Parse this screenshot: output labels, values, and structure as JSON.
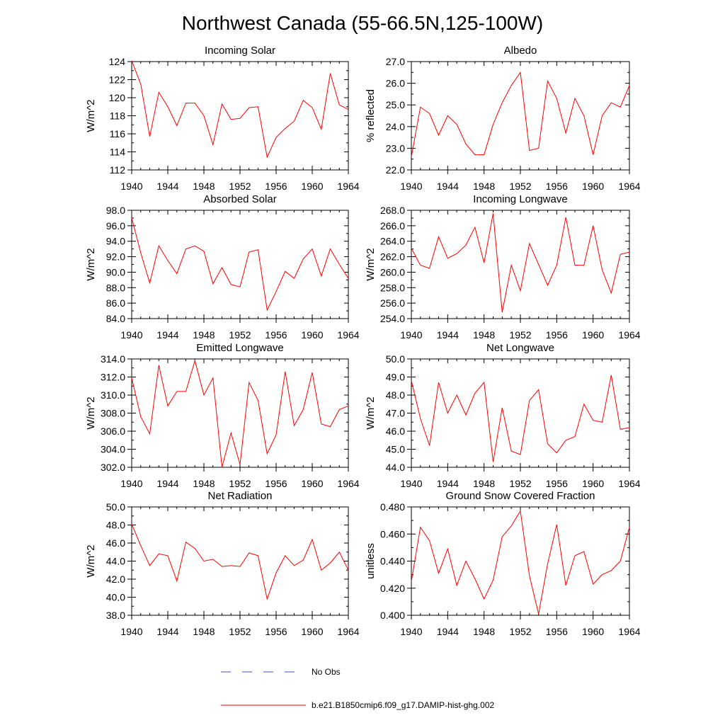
{
  "title": "Northwest Canada (55-66.5N,125-100W)",
  "legend": {
    "obs_label": "No Obs",
    "obs_color": "#3b4fb8",
    "model_label": "b.e21.B1850cmip6.f09_g17.DAMIP-hist-ghg.002",
    "model_color": "#ff0000"
  },
  "chart_data": [
    {
      "type": "line",
      "title": "Incoming Solar",
      "ylabel": "W/m^2",
      "xlim": [
        1940,
        1964
      ],
      "ylim": [
        112,
        124
      ],
      "yticks": [
        112,
        114,
        116,
        118,
        120,
        122,
        124
      ],
      "ytick_labels": [
        "112",
        "114",
        "116",
        "118",
        "120",
        "122",
        "124"
      ],
      "xticks": [
        1940,
        1944,
        1948,
        1952,
        1956,
        1960,
        1964
      ],
      "xtick_labels": [
        "1940",
        "1944",
        "1948",
        "1952",
        "1956",
        "1960",
        "1964"
      ],
      "x": [
        1940,
        1941,
        1942,
        1943,
        1944,
        1945,
        1946,
        1947,
        1948,
        1949,
        1950,
        1951,
        1952,
        1953,
        1954,
        1955,
        1956,
        1957,
        1958,
        1959,
        1960,
        1961,
        1962,
        1963,
        1964
      ],
      "series": [
        {
          "name": "b.e21.B1850cmip6.f09_g17.DAMIP-hist-ghg.002",
          "values": [
            124.1,
            121.5,
            115.7,
            120.6,
            119.0,
            116.9,
            119.4,
            119.4,
            118.0,
            114.8,
            119.3,
            117.6,
            117.7,
            118.9,
            119.0,
            113.4,
            115.6,
            116.6,
            117.4,
            119.7,
            118.9,
            116.5,
            122.7,
            119.2,
            118.7
          ]
        }
      ]
    },
    {
      "type": "line",
      "title": "Albedo",
      "ylabel": "% reflected",
      "xlim": [
        1940,
        1964
      ],
      "ylim": [
        22.0,
        27.0
      ],
      "yticks": [
        22.0,
        23.0,
        24.0,
        25.0,
        26.0,
        27.0
      ],
      "ytick_labels": [
        "22.0",
        "23.0",
        "24.0",
        "25.0",
        "26.0",
        "27.0"
      ],
      "xticks": [
        1940,
        1944,
        1948,
        1952,
        1956,
        1960,
        1964
      ],
      "xtick_labels": [
        "1940",
        "1944",
        "1948",
        "1952",
        "1956",
        "1960",
        "1964"
      ],
      "x": [
        1940,
        1941,
        1942,
        1943,
        1944,
        1945,
        1946,
        1947,
        1948,
        1949,
        1950,
        1951,
        1952,
        1953,
        1954,
        1955,
        1956,
        1957,
        1958,
        1959,
        1960,
        1961,
        1962,
        1963,
        1964
      ],
      "series": [
        {
          "name": "b.e21.B1850cmip6.f09_g17.DAMIP-hist-ghg.002",
          "values": [
            22.6,
            24.9,
            24.6,
            23.6,
            24.5,
            24.1,
            23.2,
            22.7,
            22.7,
            24.1,
            25.1,
            25.9,
            26.5,
            22.9,
            23.0,
            26.1,
            25.3,
            23.7,
            25.3,
            24.5,
            22.7,
            24.5,
            25.1,
            24.9,
            25.9
          ]
        }
      ]
    },
    {
      "type": "line",
      "title": "Absorbed Solar",
      "ylabel": "W/m^2",
      "xlim": [
        1940,
        1964
      ],
      "ylim": [
        84.0,
        98.0
      ],
      "yticks": [
        84.0,
        86.0,
        88.0,
        90.0,
        92.0,
        94.0,
        96.0,
        98.0
      ],
      "ytick_labels": [
        "84.0",
        "86.0",
        "88.0",
        "90.0",
        "92.0",
        "94.0",
        "96.0",
        "98.0"
      ],
      "xticks": [
        1940,
        1944,
        1948,
        1952,
        1956,
        1960,
        1964
      ],
      "xtick_labels": [
        "1940",
        "1944",
        "1948",
        "1952",
        "1956",
        "1960",
        "1964"
      ],
      "x": [
        1940,
        1941,
        1942,
        1943,
        1944,
        1945,
        1946,
        1947,
        1948,
        1949,
        1950,
        1951,
        1952,
        1953,
        1954,
        1955,
        1956,
        1957,
        1958,
        1959,
        1960,
        1961,
        1962,
        1963,
        1964
      ],
      "series": [
        {
          "name": "b.e21.B1850cmip6.f09_g17.DAMIP-hist-ghg.002",
          "values": [
            97.0,
            92.5,
            88.6,
            93.4,
            91.5,
            89.8,
            93.0,
            93.4,
            92.7,
            88.5,
            90.6,
            88.4,
            88.1,
            92.6,
            92.9,
            85.1,
            87.5,
            90.1,
            89.2,
            91.7,
            93.0,
            89.5,
            93.0,
            91.0,
            89.2
          ]
        }
      ]
    },
    {
      "type": "line",
      "title": "Incoming Longwave",
      "ylabel": "W/m^2",
      "xlim": [
        1940,
        1964
      ],
      "ylim": [
        254.0,
        268.0
      ],
      "yticks": [
        254.0,
        256.0,
        258.0,
        260.0,
        262.0,
        264.0,
        266.0,
        268.0
      ],
      "ytick_labels": [
        "254.0",
        "256.0",
        "258.0",
        "260.0",
        "262.0",
        "264.0",
        "266.0",
        "268.0"
      ],
      "xticks": [
        1940,
        1944,
        1948,
        1952,
        1956,
        1960,
        1964
      ],
      "xtick_labels": [
        "1940",
        "1944",
        "1948",
        "1952",
        "1956",
        "1960",
        "1964"
      ],
      "x": [
        1940,
        1941,
        1942,
        1943,
        1944,
        1945,
        1946,
        1947,
        1948,
        1949,
        1950,
        1951,
        1952,
        1953,
        1954,
        1955,
        1956,
        1957,
        1958,
        1959,
        1960,
        1961,
        1962,
        1963,
        1964
      ],
      "series": [
        {
          "name": "b.e21.B1850cmip6.f09_g17.DAMIP-hist-ghg.002",
          "values": [
            263.1,
            260.9,
            260.5,
            264.6,
            261.8,
            262.4,
            263.5,
            265.8,
            261.2,
            267.6,
            254.8,
            260.9,
            257.6,
            263.7,
            261.0,
            258.3,
            260.9,
            267.1,
            260.9,
            260.9,
            266.0,
            260.3,
            257.3,
            262.3,
            262.6
          ]
        }
      ]
    },
    {
      "type": "line",
      "title": "Emitted Longwave",
      "ylabel": "W/m^2",
      "xlim": [
        1940,
        1964
      ],
      "ylim": [
        302.0,
        314.0
      ],
      "yticks": [
        302.0,
        304.0,
        306.0,
        308.0,
        310.0,
        312.0,
        314.0
      ],
      "ytick_labels": [
        "302.0",
        "304.0",
        "306.0",
        "308.0",
        "310.0",
        "312.0",
        "314.0"
      ],
      "xticks": [
        1940,
        1944,
        1948,
        1952,
        1956,
        1960,
        1964
      ],
      "xtick_labels": [
        "1940",
        "1944",
        "1948",
        "1952",
        "1956",
        "1960",
        "1964"
      ],
      "x": [
        1940,
        1941,
        1942,
        1943,
        1944,
        1945,
        1946,
        1947,
        1948,
        1949,
        1950,
        1951,
        1952,
        1953,
        1954,
        1955,
        1956,
        1957,
        1958,
        1959,
        1960,
        1961,
        1962,
        1963,
        1964
      ],
      "series": [
        {
          "name": "b.e21.B1850cmip6.f09_g17.DAMIP-hist-ghg.002",
          "values": [
            311.9,
            307.6,
            305.7,
            313.3,
            308.8,
            310.4,
            310.4,
            313.8,
            310.0,
            311.9,
            302.0,
            305.8,
            302.3,
            311.4,
            309.4,
            303.5,
            305.6,
            312.6,
            306.6,
            308.4,
            312.5,
            306.8,
            306.5,
            308.4,
            308.8
          ]
        }
      ]
    },
    {
      "type": "line",
      "title": "Net Longwave",
      "ylabel": "W/m^2",
      "xlim": [
        1940,
        1964
      ],
      "ylim": [
        44.0,
        50.0
      ],
      "yticks": [
        44.0,
        45.0,
        46.0,
        47.0,
        48.0,
        49.0,
        50.0
      ],
      "ytick_labels": [
        "44.0",
        "45.0",
        "46.0",
        "47.0",
        "48.0",
        "49.0",
        "50.0"
      ],
      "xticks": [
        1940,
        1944,
        1948,
        1952,
        1956,
        1960,
        1964
      ],
      "xtick_labels": [
        "1940",
        "1944",
        "1948",
        "1952",
        "1956",
        "1960",
        "1964"
      ],
      "x": [
        1940,
        1941,
        1942,
        1943,
        1944,
        1945,
        1946,
        1947,
        1948,
        1949,
        1950,
        1951,
        1952,
        1953,
        1954,
        1955,
        1956,
        1957,
        1958,
        1959,
        1960,
        1961,
        1962,
        1963,
        1964
      ],
      "series": [
        {
          "name": "b.e21.B1850cmip6.f09_g17.DAMIP-hist-ghg.002",
          "values": [
            48.8,
            46.7,
            45.2,
            48.7,
            47.0,
            48.0,
            46.9,
            48.1,
            48.7,
            44.3,
            47.3,
            44.9,
            44.7,
            47.7,
            48.3,
            45.3,
            44.8,
            45.5,
            45.7,
            47.5,
            46.6,
            46.5,
            49.1,
            46.1,
            46.2
          ]
        }
      ]
    },
    {
      "type": "line",
      "title": "Net Radiation",
      "ylabel": "W/m^2",
      "xlim": [
        1940,
        1964
      ],
      "ylim": [
        38.0,
        50.0
      ],
      "yticks": [
        38.0,
        40.0,
        42.0,
        44.0,
        46.0,
        48.0,
        50.0
      ],
      "ytick_labels": [
        "38.0",
        "40.0",
        "42.0",
        "44.0",
        "46.0",
        "48.0",
        "50.0"
      ],
      "xticks": [
        1940,
        1944,
        1948,
        1952,
        1956,
        1960,
        1964
      ],
      "xtick_labels": [
        "1940",
        "1944",
        "1948",
        "1952",
        "1956",
        "1960",
        "1964"
      ],
      "x": [
        1940,
        1941,
        1942,
        1943,
        1944,
        1945,
        1946,
        1947,
        1948,
        1949,
        1950,
        1951,
        1952,
        1953,
        1954,
        1955,
        1956,
        1957,
        1958,
        1959,
        1960,
        1961,
        1962,
        1963,
        1964
      ],
      "series": [
        {
          "name": "b.e21.B1850cmip6.f09_g17.DAMIP-hist-ghg.002",
          "values": [
            48.1,
            45.7,
            43.5,
            44.8,
            44.6,
            41.8,
            46.1,
            45.4,
            44.0,
            44.2,
            43.4,
            43.5,
            43.4,
            44.9,
            44.6,
            39.8,
            42.7,
            44.6,
            43.5,
            44.1,
            46.4,
            43.0,
            43.8,
            45.0,
            43.0
          ]
        }
      ]
    },
    {
      "type": "line",
      "title": "Ground Snow Covered Fraction",
      "ylabel": "unitless",
      "xlim": [
        1940,
        1964
      ],
      "ylim": [
        0.4,
        0.48
      ],
      "yticks": [
        0.4,
        0.42,
        0.44,
        0.46,
        0.48
      ],
      "ytick_labels": [
        "0.400",
        "0.420",
        "0.440",
        "0.460",
        "0.480"
      ],
      "xticks": [
        1940,
        1944,
        1948,
        1952,
        1956,
        1960,
        1964
      ],
      "xtick_labels": [
        "1940",
        "1944",
        "1948",
        "1952",
        "1956",
        "1960",
        "1964"
      ],
      "x": [
        1940,
        1941,
        1942,
        1943,
        1944,
        1945,
        1946,
        1947,
        1948,
        1949,
        1950,
        1951,
        1952,
        1953,
        1954,
        1955,
        1956,
        1957,
        1958,
        1959,
        1960,
        1961,
        1962,
        1963,
        1964
      ],
      "series": [
        {
          "name": "b.e21.B1850cmip6.f09_g17.DAMIP-hist-ghg.002",
          "values": [
            0.425,
            0.465,
            0.455,
            0.431,
            0.449,
            0.422,
            0.44,
            0.427,
            0.412,
            0.426,
            0.458,
            0.466,
            0.477,
            0.429,
            0.401,
            0.438,
            0.467,
            0.422,
            0.444,
            0.447,
            0.423,
            0.43,
            0.433,
            0.44,
            0.465
          ]
        }
      ]
    }
  ]
}
